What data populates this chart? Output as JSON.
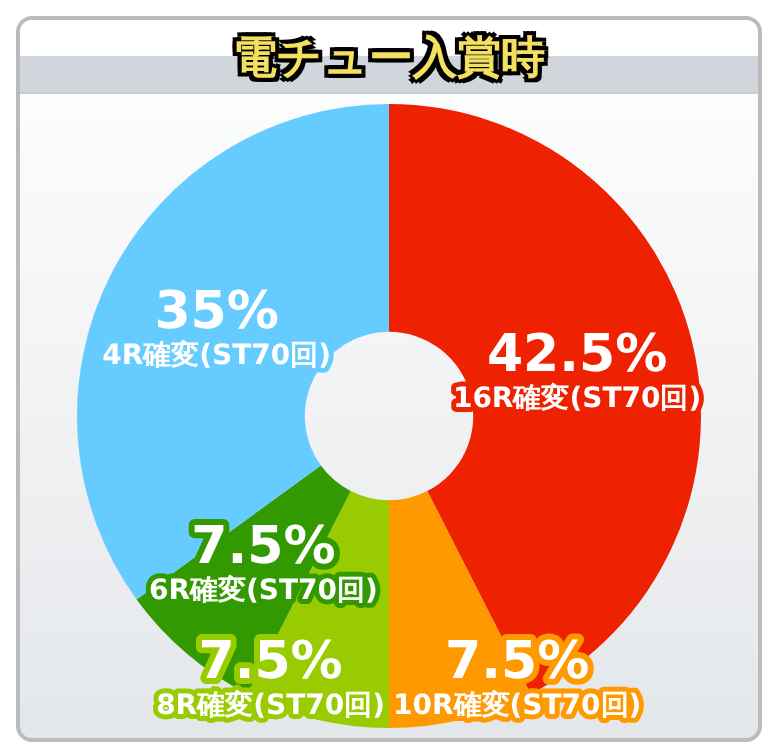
{
  "chart_data": {
    "type": "donut",
    "title": "電チュー入賞時",
    "categories": [
      "16R確変(ST70回)",
      "10R確変(ST70回)",
      "8R確変(ST70回)",
      "6R確変(ST70回)",
      "4R確変(ST70回)"
    ],
    "values": [
      42.5,
      7.5,
      7.5,
      7.5,
      35
    ],
    "value_labels": [
      "42.5%",
      "7.5%",
      "7.5%",
      "7.5%",
      "35%"
    ],
    "colors": [
      "#ee2200",
      "#ff9900",
      "#99cc00",
      "#339900",
      "#66ccff"
    ],
    "legend": false
  }
}
